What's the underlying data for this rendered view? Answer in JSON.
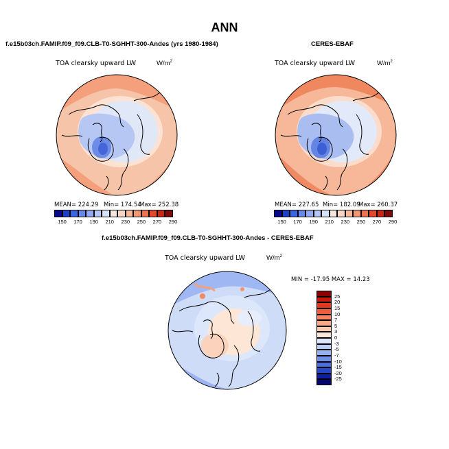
{
  "page": {
    "title": "ANN"
  },
  "panels": {
    "model": {
      "title": "f.e15b03ch.FAMIP.f09_f09.CLB-T0-SGHHT-300-Andes (yrs 1980-1984)",
      "variable": "TOA clearsky upward LW",
      "units": "W/m",
      "units_sup": "2",
      "mean": "MEAN= 224.29",
      "min": "Min= 174.54",
      "max": "Max= 252.38"
    },
    "obs": {
      "title": "CERES-EBAF",
      "variable": "TOA clearsky upward LW",
      "units": "W/m",
      "units_sup": "2",
      "mean": "MEAN= 227.65",
      "min": "Min= 182.09",
      "max": "Max= 260.37"
    },
    "diff": {
      "title": "f.e15b03ch.FAMIP.f09_f09.CLB-T0-SGHHT-300-Andes - CERES-EBAF",
      "variable": "TOA clearsky upward LW",
      "units": "W/m",
      "units_sup": "2",
      "minmax": "MIN = -17.95 MAX =  14.23"
    }
  },
  "colorbar_main": {
    "labels": [
      "150",
      "170",
      "190",
      "210",
      "230",
      "250",
      "270",
      "290"
    ],
    "colors": [
      "#08088a",
      "#1f3fc7",
      "#3a66e0",
      "#6688ea",
      "#8fabf2",
      "#b5c9f7",
      "#d6e4fb",
      "#f2e8e0",
      "#fbd6c2",
      "#f9b999",
      "#f59672",
      "#ee7150",
      "#e0492d",
      "#c52619",
      "#7f0a0a"
    ]
  },
  "colorbar_diff": {
    "labels": [
      "25",
      "20",
      "15",
      "10",
      "7",
      "5",
      "3",
      "0",
      "-3",
      "-5",
      "-7",
      "-10",
      "-15",
      "-20",
      "-25"
    ],
    "colors": [
      "#8a0000",
      "#c41a10",
      "#e2381e",
      "#ef5d3d",
      "#f5845f",
      "#f8a885",
      "#fbc9ae",
      "#fde6d6",
      "#dde8fb",
      "#b9cdf7",
      "#95b1f1",
      "#6f8fe8",
      "#4a6edd",
      "#2648c9",
      "#0f1fa0",
      "#05066e"
    ]
  }
}
